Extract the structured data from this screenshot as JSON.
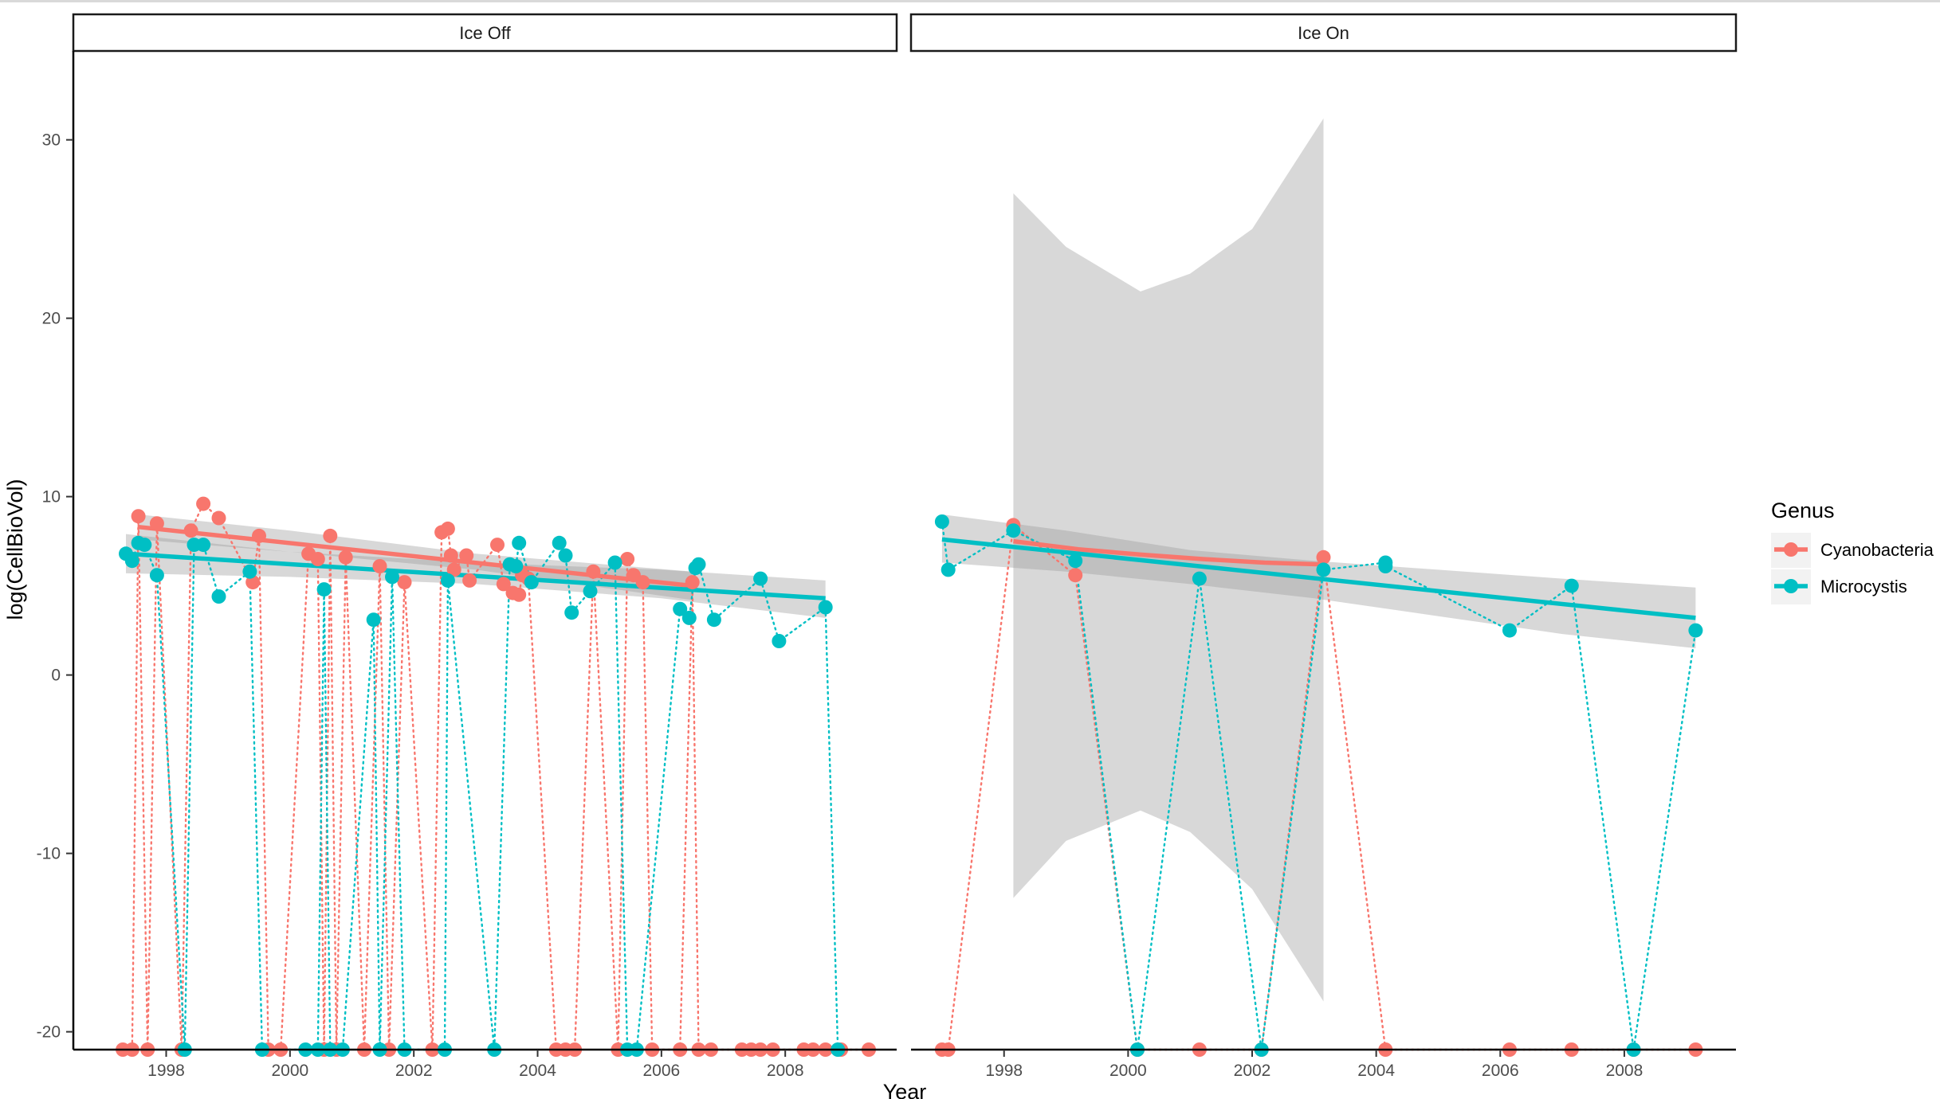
{
  "chart_data": {
    "type": "scatter",
    "xlabel": "Year",
    "ylabel": "log(CellBioVol)",
    "xlim": [
      1996.5,
      2009.8
    ],
    "ylim": [
      -21,
      34
    ],
    "x_ticks": [
      1998,
      2000,
      2002,
      2004,
      2006,
      2008
    ],
    "x_tick_labels": [
      "1998",
      "2000",
      "2002",
      "2004",
      "2006",
      "2008"
    ],
    "y_ticks": [
      -20,
      -10,
      0,
      10,
      20,
      30
    ],
    "y_tick_labels": [
      "-20",
      "-10",
      "0",
      "10",
      "20",
      "30"
    ],
    "grid": false,
    "legend": {
      "title": "Genus",
      "position": "right",
      "entries": [
        {
          "label": "Cyanobacteria",
          "color": "#F8766D"
        },
        {
          "label": "Microcystis",
          "color": "#00BFC4"
        }
      ]
    },
    "band_color": "#999999",
    "panels": [
      {
        "label": "Ice Off",
        "series": [
          {
            "name": "Cyanobacteria",
            "color": "#F8766D",
            "points": [
              [
                1997.3,
                -21
              ],
              [
                1997.45,
                -21
              ],
              [
                1997.55,
                8.9
              ],
              [
                1997.7,
                -21
              ],
              [
                1997.85,
                8.5
              ],
              [
                1998.25,
                -21
              ],
              [
                1998.4,
                8.1
              ],
              [
                1998.6,
                9.6
              ],
              [
                1998.85,
                8.8
              ],
              [
                1999.4,
                5.2
              ],
              [
                1999.5,
                7.8
              ],
              [
                1999.65,
                -21
              ],
              [
                1999.85,
                -21
              ],
              [
                2000.3,
                6.8
              ],
              [
                2000.45,
                6.5
              ],
              [
                2000.55,
                -21
              ],
              [
                2000.65,
                7.8
              ],
              [
                2000.75,
                -21
              ],
              [
                2000.9,
                6.6
              ],
              [
                2001.2,
                -21
              ],
              [
                2001.45,
                6.1
              ],
              [
                2001.6,
                -21
              ],
              [
                2001.85,
                5.2
              ],
              [
                2002.3,
                -21
              ],
              [
                2002.45,
                8.0
              ],
              [
                2002.55,
                8.2
              ],
              [
                2002.6,
                6.7
              ],
              [
                2002.65,
                5.9
              ],
              [
                2002.85,
                6.7
              ],
              [
                2002.9,
                5.3
              ],
              [
                2003.35,
                7.3
              ],
              [
                2003.45,
                5.1
              ],
              [
                2003.6,
                4.6
              ],
              [
                2003.7,
                4.5
              ],
              [
                2003.75,
                5.6
              ],
              [
                2003.85,
                5.4
              ],
              [
                2004.3,
                -21
              ],
              [
                2004.45,
                -21
              ],
              [
                2004.6,
                -21
              ],
              [
                2004.9,
                5.8
              ],
              [
                2005.3,
                -21
              ],
              [
                2005.45,
                6.5
              ],
              [
                2005.55,
                5.6
              ],
              [
                2005.7,
                5.2
              ],
              [
                2005.85,
                -21
              ],
              [
                2006.3,
                -21
              ],
              [
                2006.5,
                5.2
              ],
              [
                2006.6,
                -21
              ],
              [
                2006.8,
                -21
              ],
              [
                2007.3,
                -21
              ],
              [
                2007.45,
                -21
              ],
              [
                2007.6,
                -21
              ],
              [
                2007.8,
                -21
              ],
              [
                2008.3,
                -21
              ],
              [
                2008.45,
                -21
              ],
              [
                2008.65,
                -21
              ],
              [
                2008.9,
                -21
              ],
              [
                2009.35,
                -21
              ]
            ],
            "trend": [
              [
                1997.55,
                8.3
              ],
              [
                2006.5,
                5.0
              ]
            ]
          },
          {
            "name": "Microcystis",
            "color": "#00BFC4",
            "points": [
              [
                1997.35,
                6.8
              ],
              [
                1997.45,
                6.4
              ],
              [
                1997.55,
                7.4
              ],
              [
                1997.65,
                7.3
              ],
              [
                1997.85,
                5.6
              ],
              [
                1998.3,
                -21
              ],
              [
                1998.45,
                7.3
              ],
              [
                1998.6,
                7.3
              ],
              [
                1998.85,
                4.4
              ],
              [
                1999.35,
                5.8
              ],
              [
                1999.55,
                -21
              ],
              [
                2000.25,
                -21
              ],
              [
                2000.45,
                -21
              ],
              [
                2000.55,
                4.8
              ],
              [
                2000.65,
                -21
              ],
              [
                2000.85,
                -21
              ],
              [
                2001.35,
                3.1
              ],
              [
                2001.45,
                -21
              ],
              [
                2001.65,
                5.5
              ],
              [
                2001.85,
                -21
              ],
              [
                2002.5,
                -21
              ],
              [
                2002.55,
                5.3
              ],
              [
                2003.3,
                -21
              ],
              [
                2003.55,
                6.2
              ],
              [
                2003.65,
                6.1
              ],
              [
                2003.7,
                7.4
              ],
              [
                2003.9,
                5.2
              ],
              [
                2004.35,
                7.4
              ],
              [
                2004.45,
                6.7
              ],
              [
                2004.55,
                3.5
              ],
              [
                2004.85,
                4.7
              ],
              [
                2005.25,
                6.3
              ],
              [
                2005.45,
                -21
              ],
              [
                2005.6,
                -21
              ],
              [
                2006.3,
                3.7
              ],
              [
                2006.45,
                3.2
              ],
              [
                2006.55,
                6.0
              ],
              [
                2006.6,
                6.2
              ],
              [
                2006.85,
                3.1
              ],
              [
                2007.6,
                5.4
              ],
              [
                2007.9,
                1.9
              ],
              [
                2008.65,
                3.8
              ],
              [
                2008.85,
                -21
              ]
            ],
            "trend": [
              [
                1997.35,
                6.8
              ],
              [
                2008.65,
                4.3
              ]
            ]
          }
        ],
        "bands": [
          {
            "series": "Cyanobacteria",
            "x": [
              1997.55,
              2000.0,
              2003.0,
              2006.5
            ],
            "lower": [
              7.6,
              6.9,
              5.9,
              4.2
            ],
            "upper": [
              9.0,
              8.1,
              6.8,
              5.8
            ]
          },
          {
            "series": "Microcystis",
            "x": [
              1997.35,
              2000.0,
              2003.0,
              2006.0,
              2008.65
            ],
            "lower": [
              5.7,
              5.5,
              5.1,
              4.3,
              3.2
            ],
            "upper": [
              7.9,
              6.9,
              6.3,
              5.9,
              5.3
            ]
          }
        ]
      },
      {
        "label": "Ice On",
        "series": [
          {
            "name": "Cyanobacteria",
            "color": "#F8766D",
            "points": [
              [
                1997.0,
                -21
              ],
              [
                1997.1,
                -21
              ],
              [
                1998.15,
                8.4
              ],
              [
                1999.15,
                5.6
              ],
              [
                2000.15,
                -21
              ],
              [
                2001.15,
                -21
              ],
              [
                2002.15,
                -21
              ],
              [
                2003.15,
                6.6
              ],
              [
                2004.15,
                -21
              ],
              [
                2006.15,
                -21
              ],
              [
                2007.15,
                -21
              ],
              [
                2008.15,
                -21
              ],
              [
                2009.15,
                -21
              ]
            ],
            "trend": [
              [
                1998.15,
                7.5
              ],
              [
                1999.2,
                7.05
              ],
              [
                2000.2,
                6.75
              ],
              [
                2001.2,
                6.5
              ],
              [
                2002.2,
                6.3
              ],
              [
                2003.15,
                6.2
              ]
            ]
          },
          {
            "name": "Microcystis",
            "color": "#00BFC4",
            "points": [
              [
                1997.0,
                8.6
              ],
              [
                1997.1,
                5.9
              ],
              [
                1998.15,
                8.1
              ],
              [
                1999.15,
                6.4
              ],
              [
                2000.15,
                -21
              ],
              [
                2001.15,
                5.4
              ],
              [
                2002.15,
                -21
              ],
              [
                2003.15,
                5.9
              ],
              [
                2004.15,
                6.3
              ],
              [
                2004.15,
                6.1
              ],
              [
                2006.15,
                2.5
              ],
              [
                2007.15,
                5.0
              ],
              [
                2008.15,
                -21
              ],
              [
                2009.15,
                2.5
              ]
            ],
            "trend": [
              [
                1997.0,
                7.6
              ],
              [
                2009.15,
                3.2
              ]
            ]
          }
        ],
        "bands": [
          {
            "series": "Cyanobacteria",
            "x": [
              1998.15,
              1999.0,
              2000.2,
              2001.0,
              2002.0,
              2003.15
            ],
            "lower": [
              -12.5,
              -9.3,
              -7.6,
              -8.8,
              -12.0,
              -18.3
            ],
            "upper": [
              27.0,
              24.0,
              21.5,
              22.5,
              25.0,
              31.2
            ]
          },
          {
            "series": "Microcystis",
            "x": [
              1997.0,
              1999.0,
              2001.0,
              2003.0,
              2005.0,
              2007.0,
              2009.15
            ],
            "lower": [
              6.3,
              5.8,
              5.1,
              4.3,
              3.3,
              2.3,
              1.5
            ],
            "upper": [
              9.0,
              8.1,
              7.0,
              6.4,
              5.9,
              5.4,
              4.9
            ]
          }
        ]
      }
    ]
  }
}
